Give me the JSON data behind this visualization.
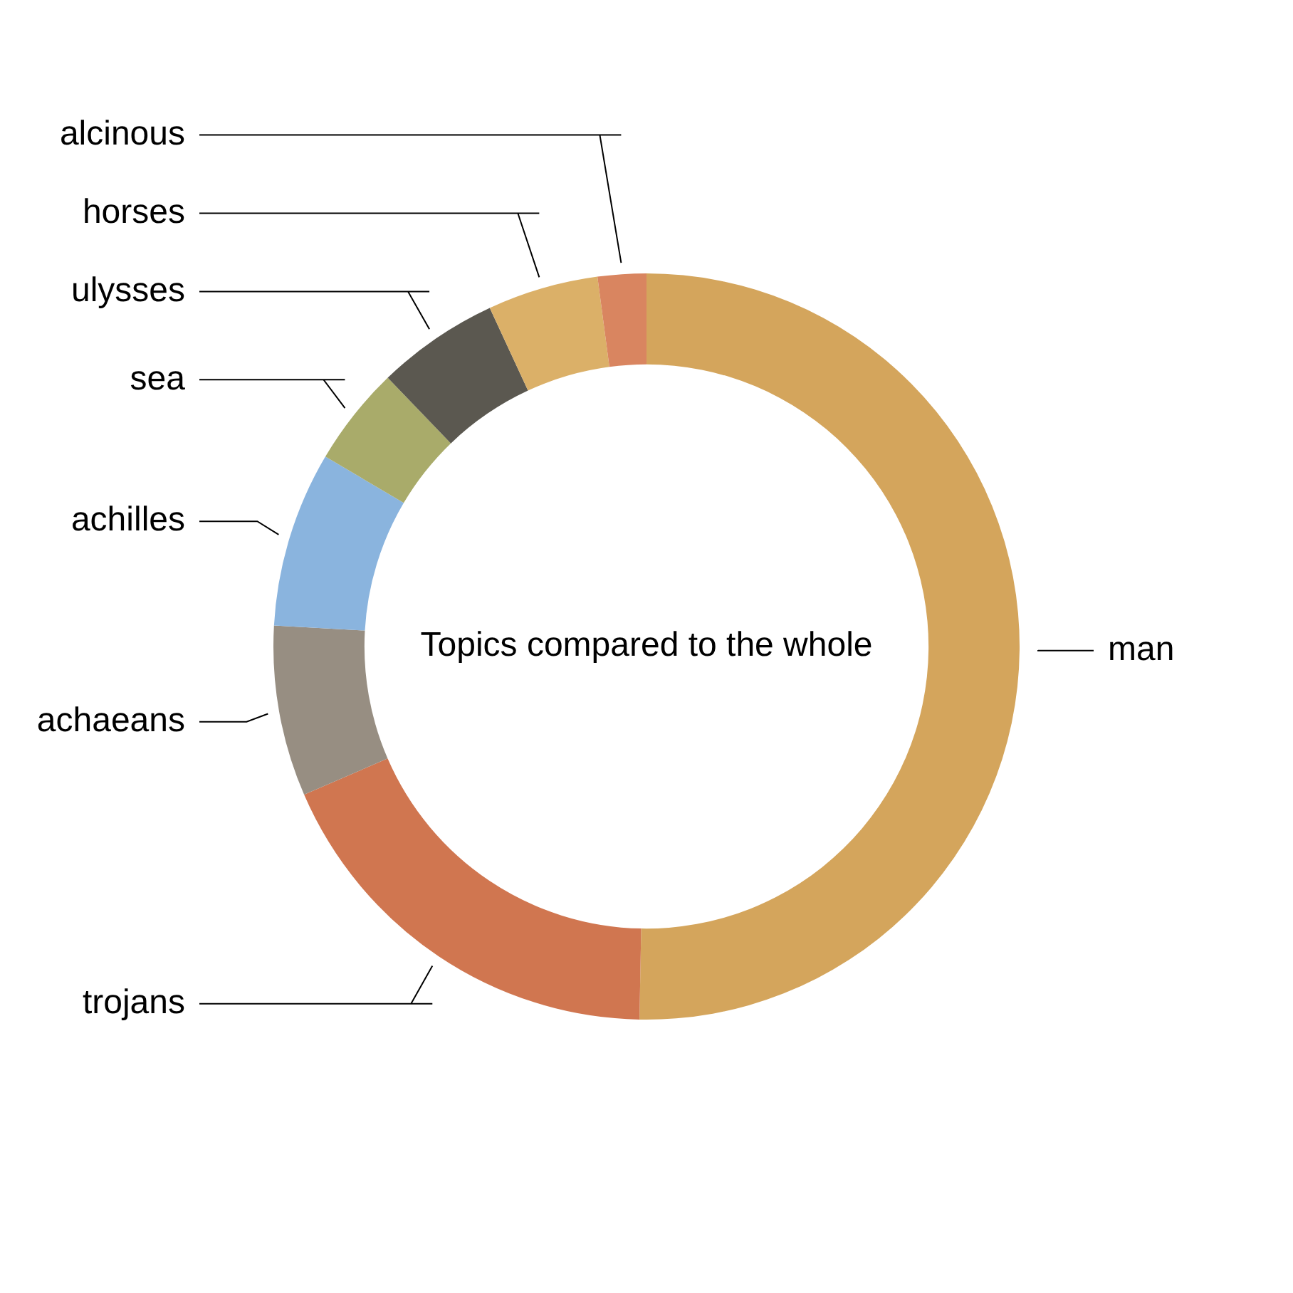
{
  "chart_data": {
    "type": "donut",
    "title": "Topics compared to the whole",
    "categories": [
      "man",
      "trojans",
      "achaeans",
      "achilles",
      "sea",
      "ulysses",
      "horses",
      "alcinous"
    ],
    "values": [
      50.3,
      18.2,
      7.4,
      7.6,
      4.3,
      5.3,
      4.8,
      2.1
    ],
    "colors": [
      "#d4a55c",
      "#d07650",
      "#978e82",
      "#8ab4de",
      "#a9ab6a",
      "#5b5850",
      "#dbb068",
      "#d98560"
    ],
    "legend": false
  }
}
